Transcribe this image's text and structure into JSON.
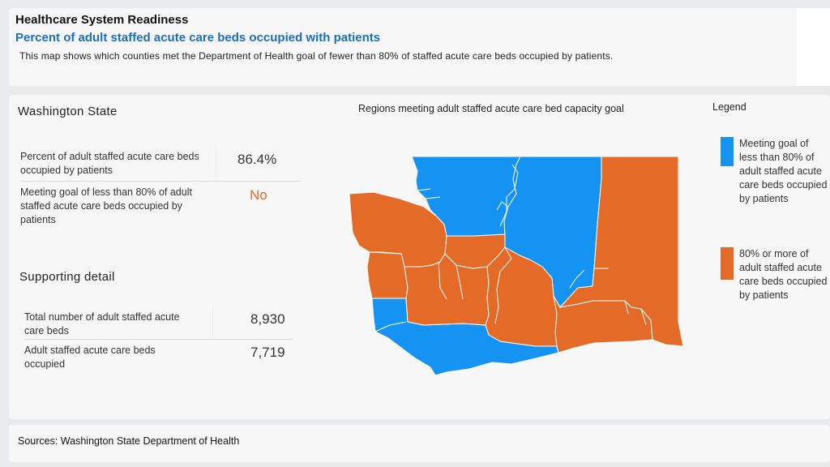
{
  "header": {
    "title": "Healthcare System Readiness",
    "subtitle": "Percent of adult staffed acute care beds occupied with patients",
    "description": "This map shows which counties met the Department of Health goal of fewer than 80% of staffed acute care beds occupied by patients."
  },
  "summary": {
    "state_name": "Washington State",
    "rows": [
      {
        "label": "Percent of adult staffed acute care beds occupied by patients",
        "value": "86.4%"
      },
      {
        "label": "Meeting goal of less than 80% of adult staffed acute care beds occupied by patients",
        "value": "No"
      }
    ]
  },
  "supporting": {
    "title": "Supporting detail",
    "rows": [
      {
        "label": "Total number of adult staffed acute care beds",
        "value": "8,930"
      },
      {
        "label": "Adult staffed acute care beds occupied",
        "value": "7,719"
      }
    ]
  },
  "map": {
    "title": "Regions meeting adult staffed acute care bed capacity goal",
    "region_status": [
      {
        "status": "meeting"
      },
      {
        "status": "meeting"
      },
      {
        "status": "meeting"
      },
      {
        "status": "not-meeting"
      },
      {
        "status": "not-meeting"
      },
      {
        "status": "not-meeting"
      },
      {
        "status": "not-meeting"
      },
      {
        "status": "not-meeting"
      },
      {
        "status": "not-meeting"
      }
    ]
  },
  "legend": {
    "title": "Legend",
    "items": [
      {
        "label": "Meeting goal of less than 80% of adult staffed acute care beds occupied by patients",
        "color": "#1493f2"
      },
      {
        "label": "80% or more of adult staffed acute care beds occupied by patients",
        "color": "#e46a27"
      }
    ]
  },
  "colors": {
    "meeting": "#1493f2",
    "not_meeting": "#e46a27",
    "accent_no": "#e46a27",
    "subtitle": "#1a6fc1"
  },
  "sources": "Sources: Washington State Department of Health"
}
